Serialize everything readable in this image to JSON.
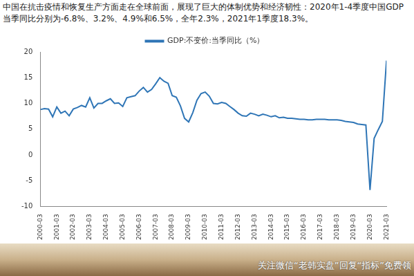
{
  "chart_data": {
    "type": "line",
    "title": "中国在抗击疫情和恢复生产方面走在全球前面，展现了巨大的体制优势和经济韧性：2020年1-4季度中国GDP当季同比分别为-6.8%、3.2%、4.9%和6.5%，全年2.3%，2021年1季度18.3%。",
    "categories": [
      "2000-03",
      null,
      null,
      null,
      "2001-03",
      null,
      null,
      null,
      "2002-03",
      null,
      null,
      null,
      "2003-03",
      null,
      null,
      null,
      "2004-03",
      null,
      null,
      null,
      "2005-03",
      null,
      null,
      null,
      "2006-03",
      null,
      null,
      null,
      "2007-03",
      null,
      null,
      null,
      "2008-03",
      null,
      null,
      null,
      "2009-03",
      null,
      null,
      null,
      "2010-03",
      null,
      null,
      null,
      "2011-03",
      null,
      null,
      null,
      "2012-03",
      null,
      null,
      null,
      "2013-03",
      null,
      null,
      null,
      "2014-03",
      null,
      null,
      null,
      "2015-03",
      null,
      null,
      null,
      "2016-03",
      null,
      null,
      null,
      "2017-03",
      null,
      null,
      null,
      "2018-03",
      null,
      null,
      null,
      "2019-03",
      null,
      null,
      null,
      "2020-03",
      null,
      null,
      null,
      "2021-03"
    ],
    "series": [
      {
        "name": "GDP:不变价:当季同比（%）",
        "color": "#2E75B6",
        "values": [
          8.8,
          9.0,
          8.9,
          7.4,
          9.3,
          8.1,
          8.5,
          7.6,
          8.9,
          9.2,
          9.6,
          9.3,
          11.1,
          9.1,
          10.0,
          10.0,
          10.5,
          10.9,
          10.0,
          10.1,
          9.4,
          11.1,
          11.3,
          11.5,
          12.4,
          13.1,
          12.2,
          12.7,
          13.8,
          15.0,
          14.3,
          13.9,
          11.5,
          11.2,
          9.5,
          7.1,
          6.4,
          8.2,
          10.6,
          11.9,
          12.2,
          11.4,
          10.0,
          9.9,
          10.2,
          10.0,
          9.4,
          8.8,
          8.1,
          7.6,
          7.5,
          8.1,
          7.9,
          7.6,
          7.9,
          7.7,
          7.4,
          7.6,
          7.2,
          7.3,
          7.1,
          7.1,
          7.0,
          6.9,
          6.9,
          6.8,
          6.8,
          6.9,
          6.9,
          6.9,
          6.8,
          6.8,
          6.8,
          6.7,
          6.5,
          6.4,
          6.3,
          6.0,
          5.9,
          5.8,
          -6.8,
          3.2,
          4.9,
          6.5,
          18.3
        ]
      }
    ],
    "ylim": [
      -10,
      20
    ],
    "yticks": [
      -10,
      -5,
      0,
      5,
      10,
      15,
      20
    ],
    "grid": false,
    "legend": "top"
  },
  "footer": {
    "text": "关注微信“老韩实盘”回复“指标”免费领"
  }
}
